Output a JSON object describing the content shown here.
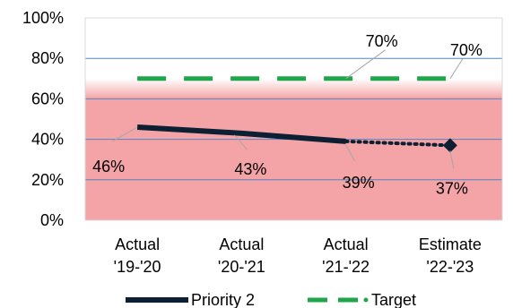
{
  "chart_data": {
    "type": "line",
    "title": "",
    "xlabel": "",
    "ylabel": "",
    "ylim": [
      0,
      100
    ],
    "y_ticks": [
      "0%",
      "20%",
      "40%",
      "60%",
      "80%",
      "100%"
    ],
    "y_tick_values": [
      0,
      20,
      40,
      60,
      80,
      100
    ],
    "grid": true,
    "categories": [
      {
        "line1": "Actual",
        "line2": "'19-'20"
      },
      {
        "line1": "Actual",
        "line2": "'20-'21"
      },
      {
        "line1": "Actual",
        "line2": "'21-'22"
      },
      {
        "line1": "Estimate",
        "line2": "'22-'23"
      }
    ],
    "series": [
      {
        "name": "Priority 2",
        "values": [
          46,
          43,
          39,
          37
        ],
        "labels": [
          "46%",
          "43%",
          "39%",
          "37%"
        ],
        "color": "#0d1f33",
        "estimate_segment_dotted": true
      },
      {
        "name": "Target",
        "values": [
          70,
          70,
          70,
          70
        ],
        "labels": [
          "",
          "",
          "70%",
          "70%"
        ],
        "color": "#1fa64a",
        "dashed": true
      }
    ],
    "background_bands": [
      {
        "from": 0,
        "to": 60,
        "color": "#f4a3a6"
      },
      {
        "from": 60,
        "to": 70,
        "gradient": true
      },
      {
        "from": 70,
        "to": 100,
        "color": "#ffffff"
      }
    ],
    "legend_position": "bottom"
  }
}
